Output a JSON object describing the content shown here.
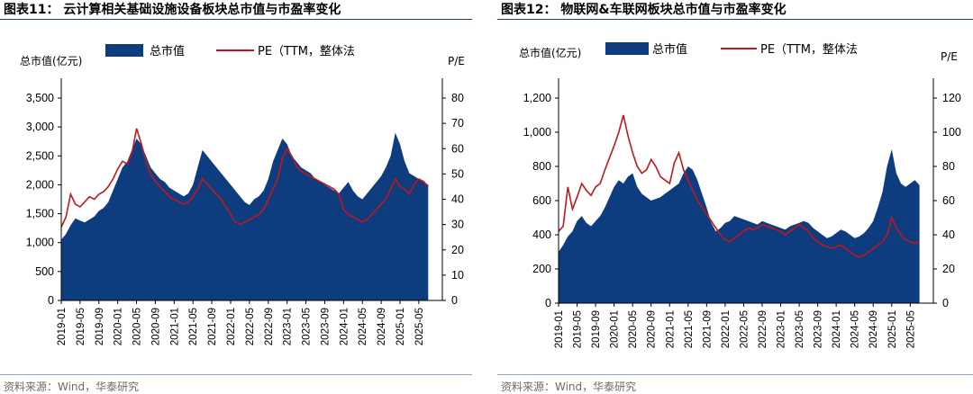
{
  "figures": [
    {
      "title": "图表11： 云计算相关基础设施设备板块总市值与市盈率变化",
      "source": "资料来源：Wind，华泰研究",
      "colors": {
        "area": "#0d3c7f",
        "line": "#c4161c"
      },
      "legend": {
        "area": "总市值",
        "line": "PE（TTM，整体法"
      },
      "left_axis_label": "总市值(亿元)",
      "right_axis_label": "P/E",
      "left_ticks": [
        "0",
        "500",
        "1,000",
        "1,500",
        "2,000",
        "2,500",
        "3,000",
        "3,500"
      ],
      "right_ticks": [
        "0",
        "10",
        "20",
        "30",
        "40",
        "50",
        "60",
        "70",
        "80"
      ],
      "x_ticks": [
        "2019-01",
        "2019-05",
        "2019-09",
        "2020-01",
        "2020-05",
        "2020-09",
        "2021-01",
        "2021-05",
        "2021-09",
        "2022-01",
        "2022-05",
        "2022-09",
        "2023-01",
        "2023-05",
        "2023-09",
        "2024-01",
        "2024-05",
        "2024-09",
        "2025-01",
        "2025-05"
      ]
    },
    {
      "title": "图表12： 物联网&车联网板块总市值与市盈率变化",
      "source": "资料来源：Wind，华泰研究",
      "colors": {
        "area": "#0d3c7f",
        "line": "#c4161c"
      },
      "legend": {
        "area": "总市值",
        "line": "PE（TTM，整体法"
      },
      "left_axis_label": "总市值(亿元)",
      "right_axis_label": "P/E",
      "left_ticks": [
        "0",
        "200",
        "400",
        "600",
        "800",
        "1,000",
        "1,200"
      ],
      "right_ticks": [
        "0",
        "20",
        "40",
        "60",
        "80",
        "100",
        "120"
      ],
      "x_ticks": [
        "2019-01",
        "2019-05",
        "2019-09",
        "2020-01",
        "2020-05",
        "2020-09",
        "2021-01",
        "2021-05",
        "2021-09",
        "2022-01",
        "2022-05",
        "2022-09",
        "2023-01",
        "2023-05",
        "2023-09",
        "2024-01",
        "2024-05",
        "2024-09",
        "2025-01",
        "2025-05"
      ]
    }
  ],
  "chart_data": [
    {
      "type": "area",
      "x_unit": "months since 2019-01",
      "ylim_left": [
        0,
        3500
      ],
      "ylim_right": [
        0,
        80
      ],
      "series": [
        {
          "name": "总市值",
          "axis": "left",
          "x": [
            0,
            1,
            2,
            3,
            4,
            5,
            6,
            7,
            8,
            9,
            10,
            11,
            12,
            13,
            14,
            15,
            16,
            17,
            18,
            19,
            20,
            21,
            22,
            23,
            24,
            25,
            26,
            27,
            28,
            29,
            30,
            31,
            32,
            33,
            34,
            35,
            36,
            37,
            38,
            39,
            40,
            41,
            42,
            43,
            44,
            45,
            46,
            47,
            48,
            49,
            50,
            51,
            52,
            53,
            54,
            55,
            56,
            57,
            58,
            59,
            60,
            61,
            62,
            63,
            64,
            65,
            66,
            67,
            68,
            69,
            70,
            71,
            72,
            73,
            74,
            75,
            76,
            77,
            78
          ],
          "values": [
            1050,
            1150,
            1300,
            1420,
            1380,
            1350,
            1400,
            1450,
            1550,
            1600,
            1700,
            1900,
            2100,
            2300,
            2400,
            2600,
            2800,
            2700,
            2500,
            2300,
            2200,
            2100,
            2050,
            1950,
            1900,
            1850,
            1800,
            1850,
            2000,
            2300,
            2600,
            2500,
            2400,
            2300,
            2200,
            2100,
            2000,
            1900,
            1800,
            1700,
            1650,
            1750,
            1800,
            1900,
            2100,
            2400,
            2600,
            2800,
            2700,
            2500,
            2400,
            2300,
            2250,
            2200,
            2100,
            2050,
            2000,
            1950,
            1900,
            1850,
            1950,
            2050,
            1900,
            1800,
            1750,
            1850,
            1950,
            2050,
            2150,
            2300,
            2500,
            2900,
            2700,
            2400,
            2200,
            2150,
            2100,
            2050,
            2000
          ]
        },
        {
          "name": "PE（TTM，整体法",
          "axis": "right",
          "x": [
            0,
            1,
            2,
            3,
            4,
            5,
            6,
            7,
            8,
            9,
            10,
            11,
            12,
            13,
            14,
            15,
            16,
            17,
            18,
            19,
            20,
            21,
            22,
            23,
            24,
            25,
            26,
            27,
            28,
            29,
            30,
            31,
            32,
            33,
            34,
            35,
            36,
            37,
            38,
            39,
            40,
            41,
            42,
            43,
            44,
            45,
            46,
            47,
            48,
            49,
            50,
            51,
            52,
            53,
            54,
            55,
            56,
            57,
            58,
            59,
            60,
            61,
            62,
            63,
            64,
            65,
            66,
            67,
            68,
            69,
            70,
            71,
            72,
            73,
            74,
            75,
            76,
            77,
            78
          ],
          "values": [
            29,
            33,
            42,
            38,
            37,
            39,
            41,
            40,
            42,
            43,
            45,
            48,
            52,
            55,
            54,
            58,
            68,
            62,
            55,
            50,
            47,
            45,
            43,
            41,
            40,
            39,
            38,
            39,
            41,
            44,
            48,
            46,
            44,
            42,
            40,
            37,
            34,
            31,
            30,
            31,
            32,
            33,
            34,
            36,
            40,
            44,
            48,
            56,
            60,
            57,
            53,
            51,
            50,
            49,
            48,
            47,
            46,
            45,
            44,
            42,
            36,
            34,
            33,
            32,
            31,
            32,
            34,
            36,
            38,
            40,
            44,
            48,
            45,
            44,
            42,
            46,
            48,
            47,
            45
          ]
        }
      ]
    },
    {
      "type": "area",
      "x_unit": "months since 2019-01",
      "ylim_left": [
        0,
        1200
      ],
      "ylim_right": [
        0,
        120
      ],
      "series": [
        {
          "name": "总市值",
          "axis": "left",
          "x": [
            0,
            1,
            2,
            3,
            4,
            5,
            6,
            7,
            8,
            9,
            10,
            11,
            12,
            13,
            14,
            15,
            16,
            17,
            18,
            19,
            20,
            21,
            22,
            23,
            24,
            25,
            26,
            27,
            28,
            29,
            30,
            31,
            32,
            33,
            34,
            35,
            36,
            37,
            38,
            39,
            40,
            41,
            42,
            43,
            44,
            45,
            46,
            47,
            48,
            49,
            50,
            51,
            52,
            53,
            54,
            55,
            56,
            57,
            58,
            59,
            60,
            61,
            62,
            63,
            64,
            65,
            66,
            67,
            68,
            69,
            70,
            71,
            72,
            73,
            74,
            75,
            76,
            77,
            78
          ],
          "values": [
            300,
            340,
            390,
            420,
            480,
            510,
            470,
            450,
            480,
            510,
            560,
            620,
            680,
            720,
            700,
            740,
            760,
            680,
            640,
            620,
            600,
            610,
            620,
            640,
            660,
            680,
            700,
            760,
            800,
            780,
            720,
            640,
            560,
            470,
            420,
            440,
            470,
            480,
            510,
            500,
            490,
            480,
            470,
            460,
            480,
            470,
            460,
            450,
            440,
            430,
            450,
            460,
            470,
            480,
            470,
            440,
            420,
            400,
            380,
            390,
            410,
            430,
            420,
            400,
            380,
            390,
            410,
            440,
            480,
            560,
            650,
            800,
            900,
            760,
            700,
            680,
            700,
            720,
            690
          ]
        },
        {
          "name": "PE（TTM，整体法",
          "axis": "right",
          "x": [
            0,
            1,
            2,
            3,
            4,
            5,
            6,
            7,
            8,
            9,
            10,
            11,
            12,
            13,
            14,
            15,
            16,
            17,
            18,
            19,
            20,
            21,
            22,
            23,
            24,
            25,
            26,
            27,
            28,
            29,
            30,
            31,
            32,
            33,
            34,
            35,
            36,
            37,
            38,
            39,
            40,
            41,
            42,
            43,
            44,
            45,
            46,
            47,
            48,
            49,
            50,
            51,
            52,
            53,
            54,
            55,
            56,
            57,
            58,
            59,
            60,
            61,
            62,
            63,
            64,
            65,
            66,
            67,
            68,
            69,
            70,
            71,
            72,
            73,
            74,
            75,
            76,
            77,
            78
          ],
          "values": [
            42,
            45,
            68,
            55,
            62,
            70,
            66,
            63,
            68,
            70,
            78,
            85,
            92,
            100,
            110,
            98,
            88,
            80,
            76,
            78,
            84,
            80,
            74,
            72,
            70,
            82,
            88,
            78,
            72,
            66,
            60,
            56,
            52,
            48,
            44,
            40,
            37,
            36,
            38,
            40,
            42,
            44,
            43,
            44,
            46,
            45,
            44,
            43,
            42,
            40,
            42,
            44,
            46,
            44,
            42,
            38,
            36,
            34,
            33,
            32,
            33,
            34,
            32,
            30,
            28,
            27,
            28,
            30,
            32,
            34,
            36,
            40,
            50,
            44,
            40,
            37,
            36,
            35,
            36
          ]
        }
      ]
    }
  ]
}
